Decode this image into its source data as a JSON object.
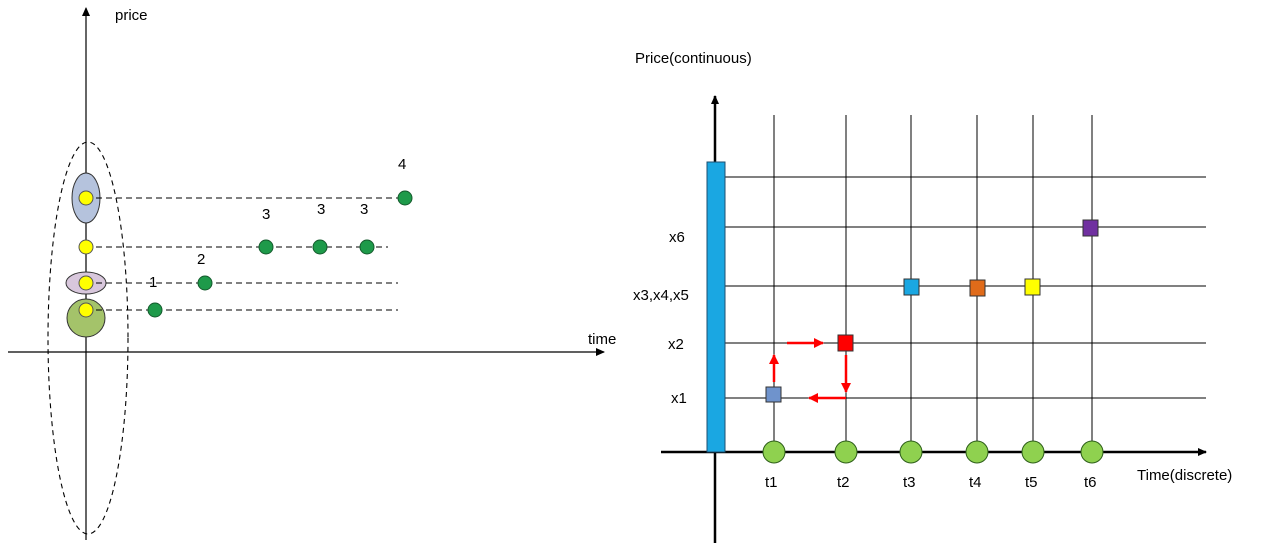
{
  "left_diagram": {
    "y_axis_label": "price",
    "x_axis_label": "time",
    "point_labels": [
      "1",
      "2",
      "3",
      "3",
      "3",
      "4"
    ],
    "colors": {
      "point": "#1e9a4a",
      "base_point": "#ffff00",
      "ellipse_top": "#b5c3dd",
      "ellipse_mid": "#d8c7dc",
      "ellipse_bottom": "#a4c36a"
    }
  },
  "right_diagram": {
    "y_axis_label": "Price(continuous)",
    "x_axis_label": "Time(discrete)",
    "y_levels": [
      "x6",
      "x3,x4,x5",
      "x2",
      "x1"
    ],
    "time_labels": [
      "t1",
      "t2",
      "t3",
      "t4",
      "t5",
      "t6"
    ],
    "colors": {
      "price_bar": "#1aa7e2",
      "time_node": "#8fd14f",
      "arrow": "#ff0000",
      "square_t1": "#6f93cc",
      "square_t2": "#ff0000",
      "square_t3": "#1aa7e2",
      "square_t4": "#e06b1a",
      "square_t5": "#ffff00",
      "square_t6": "#7030a0"
    }
  }
}
